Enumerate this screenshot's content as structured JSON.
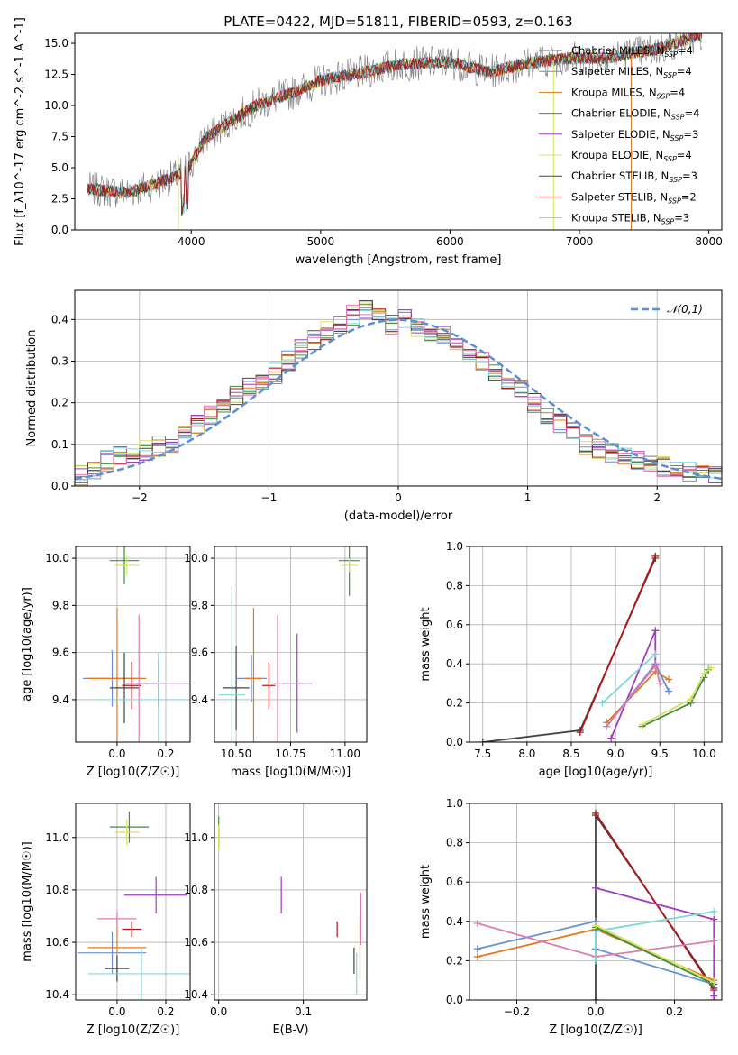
{
  "figure_title": "PLATE=0422, MJD=51811, FIBERID=0593, z=0.163",
  "colors": {
    "chabrier_miles": "#7a7a7a",
    "salpeter_miles": "#6a8fd6",
    "kroupa_miles": "#e07b20",
    "chabrier_elodie": "#3f8f3f",
    "salpeter_elodie": "#a23bbf",
    "kroupa_elodie": "#d8e060",
    "chabrier_stelib": "#444444",
    "salpeter_stelib": "#b01818",
    "kroupa_stelib": "#7fd8d8",
    "pink": "#e07bb0",
    "normal": "#5b8fd6",
    "grid": "#b0b0b0"
  },
  "chart_data": [
    {
      "id": "spectrum",
      "type": "line",
      "title": "PLATE=0422, MJD=51811, FIBERID=0593, z=0.163",
      "xlabel": "wavelength [Angstrom, rest frame]",
      "ylabel": "Flux [f_λ10^-17 erg cm^-2 s^-1 A^-1]",
      "xlim": [
        3100,
        8100
      ],
      "ylim": [
        0,
        15.8
      ],
      "xticks": [
        "4000",
        "5000",
        "6000",
        "7000",
        "8000"
      ],
      "yticks": [
        "0.0",
        "2.5",
        "5.0",
        "7.5",
        "10.0",
        "12.5",
        "15.0"
      ],
      "legend_position": "right",
      "legend": [
        "Chabrier MILES, N_SSP=4",
        "Salpeter MILES, N_SSP=4",
        "Kroupa MILES, N_SSP=4",
        "Chabrier ELODIE, N_SSP=4",
        "Salpeter ELODIE, N_SSP=3",
        "Kroupa ELODIE, N_SSP=4",
        "Chabrier STELIB, N_SSP=3",
        "Salpeter STELIB, N_SSP=2",
        "Kroupa STELIB, N_SSP=3"
      ],
      "continuum": {
        "wavelength": [
          3200,
          3500,
          3700,
          3900,
          4000,
          4100,
          4300,
          4500,
          4800,
          5000,
          5300,
          5600,
          6000,
          6300,
          6600,
          6900,
          7200,
          7400,
          7600,
          7900
        ],
        "flux": [
          3.3,
          3.0,
          3.6,
          4.4,
          5.3,
          7.3,
          8.7,
          10.0,
          11.1,
          12.0,
          12.6,
          13.3,
          13.5,
          12.7,
          13.4,
          13.8,
          13.8,
          14.2,
          14.5,
          15.6
        ]
      }
    },
    {
      "id": "residuals",
      "type": "histogram",
      "xlabel": "(data-model)/error",
      "ylabel": "Normed distribution",
      "xlim": [
        -2.5,
        2.5
      ],
      "ylim": [
        0,
        0.47
      ],
      "xticks": [
        "−2",
        "−1",
        "0",
        "1",
        "2"
      ],
      "yticks": [
        "0.0",
        "0.1",
        "0.2",
        "0.3",
        "0.4"
      ],
      "legend": [
        "𝒩(0,1)"
      ],
      "legend_position": "top-right",
      "bin_width": 0.1,
      "bin_centers": [
        -2.45,
        -2.35,
        -2.25,
        -2.15,
        -2.05,
        -1.95,
        -1.85,
        -1.75,
        -1.65,
        -1.55,
        -1.45,
        -1.35,
        -1.25,
        -1.15,
        -1.05,
        -0.95,
        -0.85,
        -0.75,
        -0.65,
        -0.55,
        -0.45,
        -0.35,
        -0.25,
        -0.15,
        -0.05,
        0.05,
        0.15,
        0.25,
        0.35,
        0.45,
        0.55,
        0.65,
        0.75,
        0.85,
        0.95,
        1.05,
        1.15,
        1.25,
        1.35,
        1.45,
        1.55,
        1.65,
        1.75,
        1.85,
        1.95,
        2.05,
        2.15,
        2.25,
        2.35,
        2.45
      ],
      "densities": [
        0.025,
        0.04,
        0.06,
        0.075,
        0.08,
        0.085,
        0.095,
        0.09,
        0.12,
        0.15,
        0.17,
        0.2,
        0.22,
        0.24,
        0.25,
        0.27,
        0.3,
        0.33,
        0.35,
        0.37,
        0.39,
        0.41,
        0.42,
        0.41,
        0.39,
        0.4,
        0.38,
        0.37,
        0.36,
        0.34,
        0.32,
        0.3,
        0.27,
        0.25,
        0.23,
        0.2,
        0.17,
        0.15,
        0.13,
        0.1,
        0.09,
        0.08,
        0.07,
        0.06,
        0.05,
        0.045,
        0.04,
        0.035,
        0.03,
        0.025
      ]
    },
    {
      "id": "age_vs_Z",
      "type": "errorbar",
      "xlabel": "Z [log10(Z/Z☉)]",
      "ylabel": "age  [log10(age/yr)]",
      "xlim": [
        -0.17,
        0.3
      ],
      "ylim": [
        9.22,
        10.05
      ],
      "xticks": [
        "0.0",
        "0.2"
      ],
      "yticks": [
        "9.4",
        "9.6",
        "9.8",
        "10.0"
      ],
      "points": [
        {
          "x": -0.02,
          "y": 9.49,
          "xerr": 0.12,
          "yerr": 0.12,
          "color": "salpeter_miles"
        },
        {
          "x": 0.0,
          "y": 9.49,
          "xerr": 0.12,
          "yerr": 0.3,
          "color": "kroupa_miles"
        },
        {
          "x": 0.03,
          "y": 9.45,
          "xerr": 0.06,
          "yerr": 0.15,
          "color": "chabrier_stelib"
        },
        {
          "x": 0.06,
          "y": 9.46,
          "xerr": 0.04,
          "yerr": 0.1,
          "color": "salpeter_stelib"
        },
        {
          "x": 0.09,
          "y": 9.47,
          "xerr": 0.06,
          "yerr": 0.29,
          "color": "pink"
        },
        {
          "x": 0.17,
          "y": 9.47,
          "xerr": 0.13,
          "yerr": 0.1,
          "color": "salpeter_elodie"
        },
        {
          "x": 0.17,
          "y": 9.4,
          "xerr": 0.26,
          "yerr": 0.2,
          "color": "kroupa_stelib"
        },
        {
          "x": 0.03,
          "y": 9.99,
          "xerr": 0.06,
          "yerr": 0.1,
          "color": "chabrier_elodie"
        },
        {
          "x": 0.04,
          "y": 9.97,
          "xerr": 0.05,
          "yerr": 0.04,
          "color": "kroupa_elodie"
        }
      ]
    },
    {
      "id": "age_vs_mass",
      "type": "errorbar",
      "xlabel": "mass [log10(M/M☉)]",
      "ylabel": "",
      "xlim": [
        10.4,
        11.1
      ],
      "ylim": [
        9.22,
        10.05
      ],
      "xticks": [
        "10.50",
        "10.75",
        "11.00"
      ],
      "yticks": [
        "9.4",
        "9.6",
        "9.8",
        "10.0"
      ],
      "points": [
        {
          "x": 10.5,
          "y": 9.45,
          "xerr": 0.06,
          "yerr": 0.18,
          "color": "chabrier_stelib"
        },
        {
          "x": 10.48,
          "y": 9.42,
          "xerr": 0.06,
          "yerr": 0.46,
          "color": "kroupa_stelib"
        },
        {
          "x": 10.57,
          "y": 9.49,
          "xerr": 0.07,
          "yerr": 0.1,
          "color": "salpeter_miles"
        },
        {
          "x": 10.58,
          "y": 9.49,
          "xerr": 0.04,
          "yerr": 0.3,
          "color": "kroupa_miles"
        },
        {
          "x": 10.69,
          "y": 9.47,
          "xerr": 0.03,
          "yerr": 0.29,
          "color": "pink"
        },
        {
          "x": 10.65,
          "y": 9.46,
          "xerr": 0.03,
          "yerr": 0.1,
          "color": "salpeter_stelib"
        },
        {
          "x": 10.78,
          "y": 9.47,
          "xerr": 0.07,
          "yerr": 0.21,
          "color": "salpeter_elodie"
        },
        {
          "x": 11.02,
          "y": 9.99,
          "xerr": 0.05,
          "yerr": 0.15,
          "color": "chabrier_elodie"
        },
        {
          "x": 11.02,
          "y": 9.97,
          "xerr": 0.04,
          "yerr": 0.03,
          "color": "kroupa_elodie"
        }
      ]
    },
    {
      "id": "mass_weight_vs_age",
      "type": "line",
      "xlabel": "age  [log10(age/yr)]",
      "ylabel": "mass weight",
      "xlim": [
        7.35,
        10.2
      ],
      "ylim": [
        0,
        1.0
      ],
      "xticks": [
        "7.5",
        "8.0",
        "8.5",
        "9.0",
        "9.5",
        "10.0"
      ],
      "yticks": [
        "0.0",
        "0.2",
        "0.4",
        "0.6",
        "0.8",
        "1.0"
      ],
      "series": [
        {
          "color": "chabrier_stelib",
          "x": [
            7.5,
            8.6,
            9.45
          ],
          "y": [
            0.0,
            0.06,
            0.94
          ]
        },
        {
          "color": "salpeter_stelib",
          "x": [
            8.6,
            9.45
          ],
          "y": [
            0.05,
            0.95
          ]
        },
        {
          "color": "salpeter_elodie",
          "x": [
            8.95,
            9.45,
            9.45
          ],
          "y": [
            0.02,
            0.57,
            0.4
          ]
        },
        {
          "color": "kroupa_stelib",
          "x": [
            8.85,
            9.45
          ],
          "y": [
            0.2,
            0.45
          ]
        },
        {
          "color": "kroupa_miles",
          "x": [
            8.9,
            9.45,
            9.6
          ],
          "y": [
            0.1,
            0.36,
            0.32
          ]
        },
        {
          "color": "salpeter_miles",
          "x": [
            8.9,
            9.45,
            9.6
          ],
          "y": [
            0.08,
            0.4,
            0.26
          ]
        },
        {
          "color": "pink",
          "x": [
            8.9,
            9.45,
            9.5
          ],
          "y": [
            0.08,
            0.39,
            0.3
          ]
        },
        {
          "color": "chabrier_elodie",
          "x": [
            9.3,
            9.85,
            10.0,
            10.05
          ],
          "y": [
            0.08,
            0.2,
            0.33,
            0.37
          ]
        },
        {
          "color": "kroupa_elodie",
          "x": [
            9.3,
            9.85,
            10.0,
            10.08
          ],
          "y": [
            0.09,
            0.22,
            0.35,
            0.38
          ]
        }
      ]
    },
    {
      "id": "mass_vs_Z",
      "type": "errorbar",
      "xlabel": "Z [log10(Z/Z☉)]",
      "ylabel": "mass [log10(M/M☉)]",
      "xlim": [
        -0.17,
        0.3
      ],
      "ylim": [
        10.38,
        11.13
      ],
      "xticks": [
        "0.0",
        "0.2"
      ],
      "yticks": [
        "10.4",
        "10.6",
        "10.8",
        "11.0"
      ],
      "points": [
        {
          "x": -0.02,
          "y": 10.56,
          "xerr": 0.14,
          "yerr": 0.08,
          "color": "salpeter_miles"
        },
        {
          "x": 0.0,
          "y": 10.58,
          "xerr": 0.12,
          "yerr": 0.12,
          "color": "kroupa_miles"
        },
        {
          "x": 0.0,
          "y": 10.69,
          "xerr": 0.08,
          "yerr": 0.03,
          "color": "pink"
        },
        {
          "x": 0.0,
          "y": 10.5,
          "xerr": 0.05,
          "yerr": 0.05,
          "color": "chabrier_stelib"
        },
        {
          "x": 0.06,
          "y": 10.65,
          "xerr": 0.04,
          "yerr": 0.03,
          "color": "salpeter_stelib"
        },
        {
          "x": 0.16,
          "y": 10.78,
          "xerr": 0.13,
          "yerr": 0.07,
          "color": "salpeter_elodie"
        },
        {
          "x": 0.1,
          "y": 10.48,
          "xerr": 0.22,
          "yerr": 0.1,
          "color": "kroupa_stelib"
        },
        {
          "x": 0.05,
          "y": 11.04,
          "xerr": 0.08,
          "yerr": 0.06,
          "color": "chabrier_elodie"
        },
        {
          "x": 0.04,
          "y": 11.02,
          "xerr": 0.05,
          "yerr": 0.05,
          "color": "kroupa_elodie"
        }
      ]
    },
    {
      "id": "mass_vs_EBV",
      "type": "errorbar",
      "xlabel": "E(B-V)",
      "ylabel": "",
      "xlim": [
        -0.005,
        0.175
      ],
      "ylim": [
        10.38,
        11.13
      ],
      "xticks": [
        "0.0",
        "0.1"
      ],
      "yticks": [
        "10.4",
        "10.6",
        "10.8",
        "11.0"
      ],
      "points": [
        {
          "x": 0.0,
          "y": 11.02,
          "xerr": 0,
          "yerr": 0.06,
          "color": "chabrier_elodie"
        },
        {
          "x": 0.0,
          "y": 11.0,
          "xerr": 0,
          "yerr": 0.05,
          "color": "kroupa_elodie"
        },
        {
          "x": 0.074,
          "y": 10.78,
          "xerr": 0,
          "yerr": 0.07,
          "color": "salpeter_elodie"
        },
        {
          "x": 0.14,
          "y": 10.65,
          "xerr": 0,
          "yerr": 0.03,
          "color": "salpeter_stelib"
        },
        {
          "x": 0.16,
          "y": 10.53,
          "xerr": 0,
          "yerr": 0.05,
          "color": "chabrier_stelib"
        },
        {
          "x": 0.163,
          "y": 10.48,
          "xerr": 0,
          "yerr": 0.08,
          "color": "kroupa_stelib"
        },
        {
          "x": 0.167,
          "y": 10.58,
          "xerr": 0,
          "yerr": 0.12,
          "color": "kroupa_miles"
        },
        {
          "x": 0.168,
          "y": 10.69,
          "xerr": 0,
          "yerr": 0.1,
          "color": "pink"
        }
      ]
    },
    {
      "id": "mass_weight_vs_Z",
      "type": "line",
      "xlabel": "Z [log10(Z/Z☉)]",
      "ylabel": "mass weight",
      "xlim": [
        -0.32,
        0.32
      ],
      "ylim": [
        0,
        1.0
      ],
      "xticks": [
        "−0.2",
        "0.0",
        "0.2"
      ],
      "yticks": [
        "0.0",
        "0.2",
        "0.4",
        "0.6",
        "0.8",
        "1.0"
      ],
      "series": [
        {
          "color": "chabrier_stelib",
          "x": [
            0.0,
            0.0,
            0.3
          ],
          "y": [
            0.0,
            0.94,
            0.06
          ]
        },
        {
          "color": "salpeter_stelib",
          "x": [
            0.0,
            0.3,
            0.3
          ],
          "y": [
            0.95,
            0.05,
            0.0
          ]
        },
        {
          "color": "salpeter_elodie",
          "x": [
            0.0,
            0.3,
            0.3
          ],
          "y": [
            0.57,
            0.41,
            0.02
          ]
        },
        {
          "color": "salpeter_miles",
          "x": [
            -0.3,
            0.0,
            0.0,
            0.3
          ],
          "y": [
            0.26,
            0.4,
            0.26,
            0.08
          ]
        },
        {
          "color": "kroupa_miles",
          "x": [
            -0.3,
            0.0,
            0.3
          ],
          "y": [
            0.22,
            0.36,
            0.1
          ]
        },
        {
          "color": "pink",
          "x": [
            -0.3,
            0.0,
            0.3
          ],
          "y": [
            0.39,
            0.22,
            0.3
          ]
        },
        {
          "color": "kroupa_stelib",
          "x": [
            0.0,
            0.0,
            0.3
          ],
          "y": [
            0.2,
            0.35,
            0.45
          ]
        },
        {
          "color": "chabrier_elodie",
          "x": [
            0.0,
            0.3
          ],
          "y": [
            0.37,
            0.08
          ]
        },
        {
          "color": "kroupa_elodie",
          "x": [
            0.0,
            0.3
          ],
          "y": [
            0.38,
            0.09
          ]
        }
      ]
    }
  ]
}
